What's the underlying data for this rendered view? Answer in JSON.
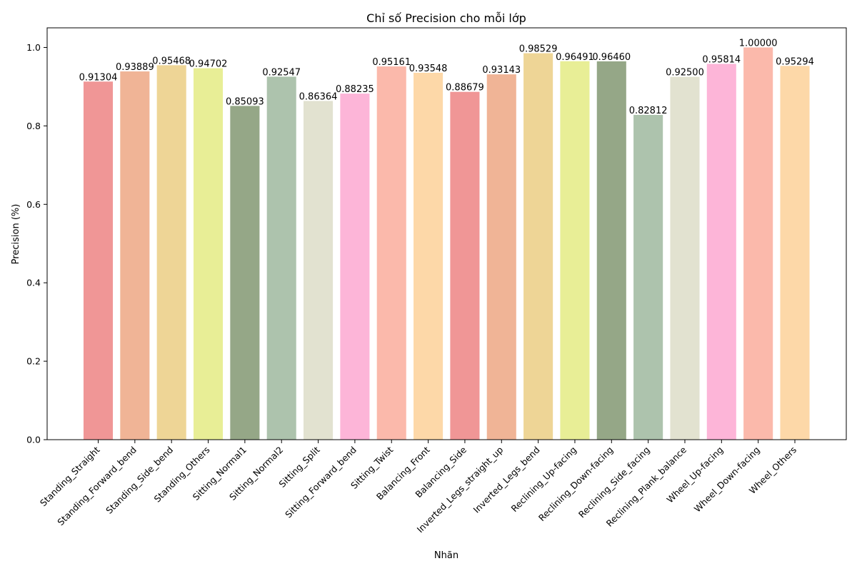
{
  "chart_data": {
    "type": "bar",
    "title": "Chỉ số Precision cho mỗi lớp",
    "xlabel": "Nhãn",
    "ylabel": "Precision (%)",
    "ylim": [
      0,
      1.05
    ],
    "yticks": [
      "0.0",
      "0.2",
      "0.4",
      "0.6",
      "0.8",
      "1.0"
    ],
    "grid": false,
    "categories": [
      "Standing_Straight",
      "Standing_Forward_bend",
      "Standing_Side_bend",
      "Standing_Others",
      "Sitting_Normal1",
      "Sitting_Normal2",
      "Sitting_Split",
      "Sitting_Forward_bend",
      "Sitting_Twist",
      "Balancing_Front",
      "Balancing_Side",
      "Inverted_Legs_straight_up",
      "Inverted_Legs_bend",
      "Reclining_Up-facing",
      "Reclining_Down-facing",
      "Reclining_Side_facing",
      "Reclining_Plank_balance",
      "Wheel_Up-facing",
      "Wheel_Down-facing",
      "Wheel_Others"
    ],
    "values": [
      0.91304,
      0.93889,
      0.95468,
      0.94702,
      0.85093,
      0.92547,
      0.86364,
      0.88235,
      0.95161,
      0.93548,
      0.88679,
      0.93143,
      0.98529,
      0.96491,
      0.9646,
      0.82812,
      0.925,
      0.95814,
      1.0,
      0.95294
    ],
    "value_labels": [
      "0.91304",
      "0.93889",
      "0.95468",
      "0.94702",
      "0.85093",
      "0.92547",
      "0.86364",
      "0.88235",
      "0.95161",
      "0.93548",
      "0.88679",
      "0.93143",
      "0.98529",
      "0.96491",
      "0.96460",
      "0.82812",
      "0.92500",
      "0.95814",
      "1.00000",
      "0.95294"
    ],
    "colors": [
      "#f09696",
      "#f0b496",
      "#eed596",
      "#e8ee96",
      "#95a787",
      "#adc3ad",
      "#e2e2d0",
      "#fdb5d8",
      "#fbb9ab",
      "#fdd8a8",
      "#f09696",
      "#f0b496",
      "#eed596",
      "#e8ee96",
      "#95a787",
      "#adc3ad",
      "#e2e2d0",
      "#fdb5d8",
      "#fbb9ab",
      "#fdd8a8"
    ]
  }
}
